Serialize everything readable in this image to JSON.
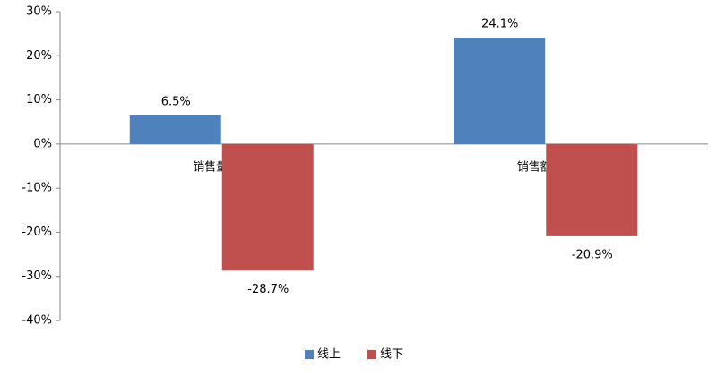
{
  "chart_data": {
    "type": "bar",
    "categories": [
      "销售量同比",
      "销售额同比"
    ],
    "series": [
      {
        "name": "线上",
        "color": "#4f81bd",
        "values": [
          6.5,
          24.1
        ],
        "value_labels": [
          "6.5%",
          "24.1%"
        ]
      },
      {
        "name": "线下",
        "color": "#c0504d",
        "values": [
          -28.7,
          -20.9
        ],
        "value_labels": [
          "-28.7%",
          "-20.9%"
        ]
      }
    ],
    "ylim": [
      -40,
      30
    ],
    "yticks": [
      {
        "value": -40,
        "label": "-40%"
      },
      {
        "value": -30,
        "label": "-30%"
      },
      {
        "value": -20,
        "label": "-20%"
      },
      {
        "value": -10,
        "label": "-10%"
      },
      {
        "value": 0,
        "label": "0%"
      },
      {
        "value": 10,
        "label": "10%"
      },
      {
        "value": 20,
        "label": "20%"
      },
      {
        "value": 30,
        "label": "30%"
      }
    ],
    "grid": false,
    "legend": "bottom"
  }
}
